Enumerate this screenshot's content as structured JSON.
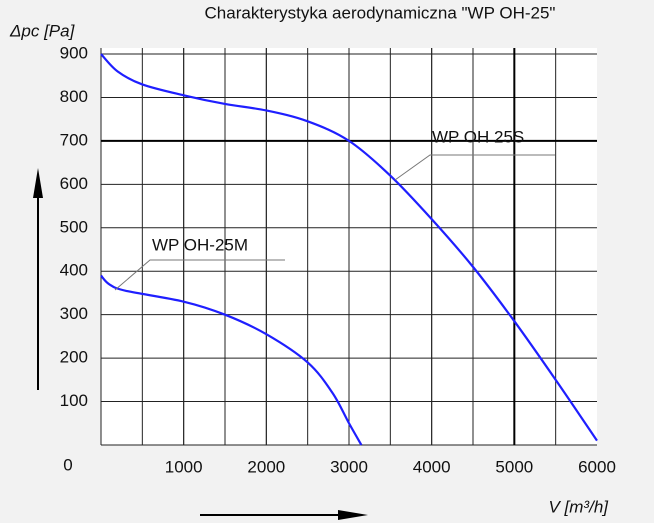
{
  "chart_data": {
    "type": "line",
    "title": "Charakterystyka aerodynamiczna  \"WP OH-25\"",
    "y_label": "Δpc [Pa]",
    "x_label": "V [m³/h]",
    "xlim": [
      0,
      6000
    ],
    "ylim": [
      0,
      900
    ],
    "xticks": [
      0,
      1000,
      2000,
      3000,
      4000,
      5000,
      6000
    ],
    "yticks": [
      0,
      100,
      200,
      300,
      400,
      500,
      600,
      700,
      800,
      900
    ],
    "grid": true,
    "grid_x_step": 500,
    "reference_lines": {
      "x": 5000,
      "y": 700
    },
    "series": [
      {
        "name": "WP OH 25S",
        "color": "#1f1fff",
        "x": [
          0,
          200,
          500,
          1000,
          1500,
          2000,
          2500,
          3000,
          3500,
          4000,
          4500,
          5000,
          5500,
          6000
        ],
        "values": [
          900,
          860,
          830,
          805,
          785,
          770,
          745,
          700,
          620,
          520,
          410,
          285,
          150,
          10
        ]
      },
      {
        "name": "WP OH-25M",
        "color": "#1f1fff",
        "x": [
          0,
          100,
          300,
          1000,
          1500,
          2000,
          2500,
          2800,
          3000,
          3150
        ],
        "values": [
          390,
          370,
          355,
          330,
          300,
          255,
          190,
          120,
          50,
          0
        ]
      }
    ]
  }
}
